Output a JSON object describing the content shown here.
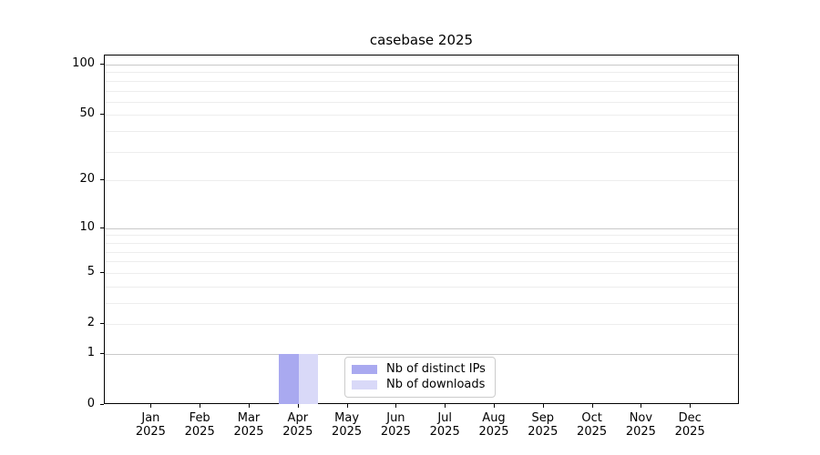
{
  "chart": {
    "title": "casebase 2025"
  },
  "chart_data": {
    "type": "bar",
    "title": "casebase 2025",
    "categories": [
      "Jan 2025",
      "Feb 2025",
      "Mar 2025",
      "Apr 2025",
      "May 2025",
      "Jun 2025",
      "Jul 2025",
      "Aug 2025",
      "Sep 2025",
      "Oct 2025",
      "Nov 2025",
      "Dec 2025"
    ],
    "months": [
      "Jan",
      "Feb",
      "Mar",
      "Apr",
      "May",
      "Jun",
      "Jul",
      "Aug",
      "Sep",
      "Oct",
      "Nov",
      "Dec"
    ],
    "year": "2025",
    "series": [
      {
        "name": "Nb of distinct IPs",
        "color": "#a9a9f0",
        "values": [
          0,
          0,
          0,
          1,
          0,
          0,
          0,
          0,
          0,
          0,
          0,
          0
        ]
      },
      {
        "name": "Nb of downloads",
        "color": "#d9d9f8",
        "values": [
          0,
          0,
          0,
          1,
          0,
          0,
          0,
          0,
          0,
          0,
          0,
          0
        ]
      }
    ],
    "xlabel": "",
    "ylabel": "",
    "yscale": "log1p",
    "ylim": [
      0,
      113
    ],
    "yticks": [
      0,
      1,
      2,
      5,
      10,
      20,
      50,
      100
    ],
    "major_gridlines": [
      1,
      10,
      100
    ],
    "minor_gridlines": [
      2,
      3,
      4,
      5,
      6,
      7,
      8,
      9,
      20,
      30,
      40,
      50,
      60,
      70,
      80,
      90
    ],
    "grid": true,
    "legend_position": "inside-bottom-center"
  }
}
